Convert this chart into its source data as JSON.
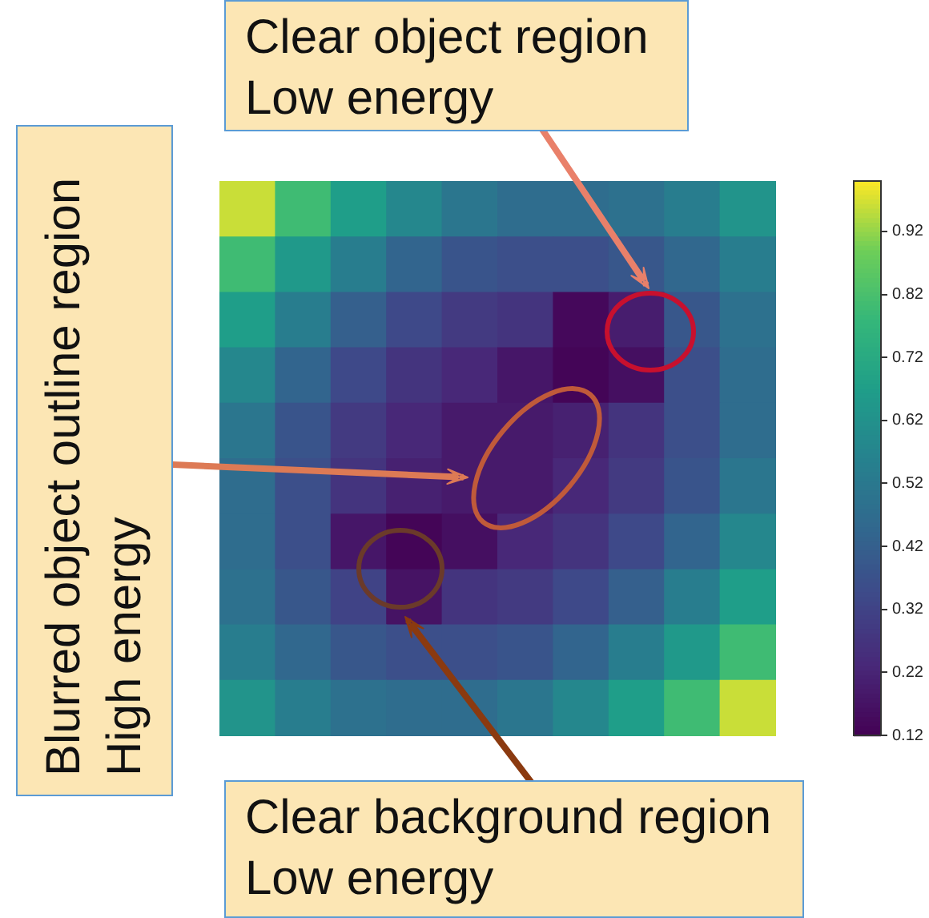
{
  "chart_data": {
    "type": "heatmap",
    "categories": [
      null,
      null,
      null,
      null,
      null,
      null,
      null,
      null,
      null,
      null
    ],
    "y_categories": [
      null,
      null,
      null,
      null,
      null,
      null,
      null,
      null,
      null,
      null
    ],
    "cells": [
      [
        0.96,
        0.8,
        0.67,
        0.58,
        0.51,
        0.47,
        0.47,
        0.49,
        0.54,
        0.63
      ],
      [
        0.8,
        0.65,
        0.54,
        0.44,
        0.38,
        0.36,
        0.36,
        0.39,
        0.45,
        0.54
      ],
      [
        0.67,
        0.54,
        0.42,
        0.34,
        0.29,
        0.27,
        0.14,
        0.2,
        0.39,
        0.49
      ],
      [
        0.58,
        0.44,
        0.34,
        0.27,
        0.23,
        0.18,
        0.13,
        0.16,
        0.36,
        0.47
      ],
      [
        0.51,
        0.38,
        0.29,
        0.23,
        0.19,
        0.19,
        0.21,
        0.27,
        0.36,
        0.47
      ],
      [
        0.47,
        0.36,
        0.27,
        0.21,
        0.19,
        0.19,
        0.23,
        0.29,
        0.38,
        0.51
      ],
      [
        0.47,
        0.36,
        0.18,
        0.13,
        0.16,
        0.23,
        0.27,
        0.34,
        0.44,
        0.58
      ],
      [
        0.49,
        0.39,
        0.32,
        0.17,
        0.27,
        0.29,
        0.34,
        0.42,
        0.54,
        0.67
      ],
      [
        0.54,
        0.45,
        0.39,
        0.36,
        0.36,
        0.38,
        0.44,
        0.54,
        0.65,
        0.8
      ],
      [
        0.63,
        0.54,
        0.49,
        0.47,
        0.47,
        0.51,
        0.58,
        0.67,
        0.8,
        0.96
      ]
    ],
    "clim": [
      0.12,
      1.0
    ],
    "cticks": [
      0.12,
      0.22,
      0.32,
      0.42,
      0.52,
      0.62,
      0.72,
      0.82,
      0.92
    ],
    "annotations": [
      "Clear object region\nLow energy",
      "Blurred object outline region\nHigh energy",
      "Clear background region\nLow energy"
    ]
  }
}
